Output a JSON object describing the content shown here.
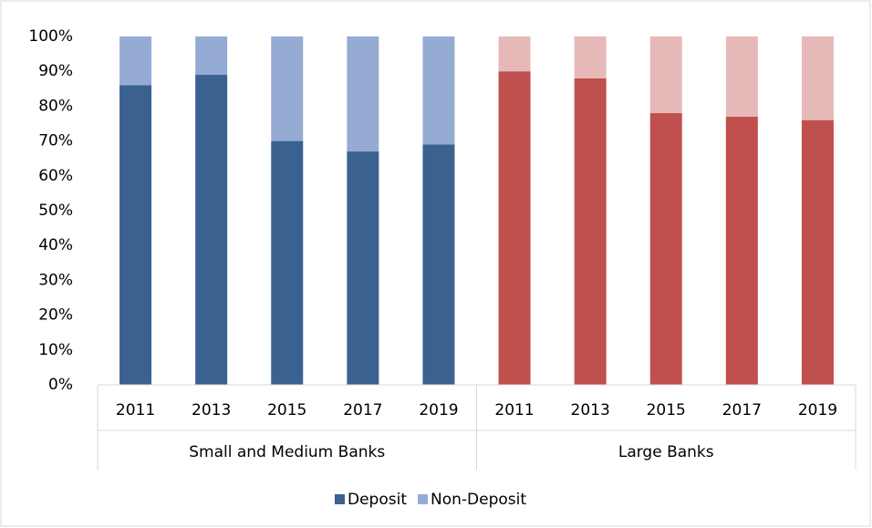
{
  "chart_data": {
    "type": "stacked_bar",
    "series": [
      {
        "name": "Deposit",
        "color": "#3b6190"
      },
      {
        "name": "Non-Deposit",
        "color": "#95abd4"
      }
    ],
    "groups": [
      {
        "name": "Small and Medium Banks",
        "categories": [
          "2011",
          "2013",
          "2015",
          "2017",
          "2019"
        ],
        "colors": [
          "#3b6190",
          "#95abd4"
        ],
        "values": [
          [
            86,
            89,
            70,
            67,
            69
          ],
          [
            14,
            11,
            30,
            33,
            31
          ]
        ]
      },
      {
        "name": "Large Banks",
        "categories": [
          "2011",
          "2013",
          "2015",
          "2017",
          "2019"
        ],
        "colors": [
          "#c0504d",
          "#e6b9b8"
        ],
        "values": [
          [
            90,
            88,
            78,
            77,
            76
          ],
          [
            10,
            12,
            22,
            23,
            24
          ]
        ]
      }
    ],
    "ylim": [
      0,
      100
    ],
    "yticks": [
      {
        "value": 0,
        "label": "0%"
      },
      {
        "value": 10,
        "label": "10%"
      },
      {
        "value": 20,
        "label": "20%"
      },
      {
        "value": 30,
        "label": "30%"
      },
      {
        "value": 40,
        "label": "40%"
      },
      {
        "value": 50,
        "label": "50%"
      },
      {
        "value": 60,
        "label": "60%"
      },
      {
        "value": 70,
        "label": "70%"
      },
      {
        "value": 80,
        "label": "80%"
      },
      {
        "value": 90,
        "label": "90%"
      },
      {
        "value": 100,
        "label": "100%"
      }
    ],
    "legend": "bottom"
  }
}
